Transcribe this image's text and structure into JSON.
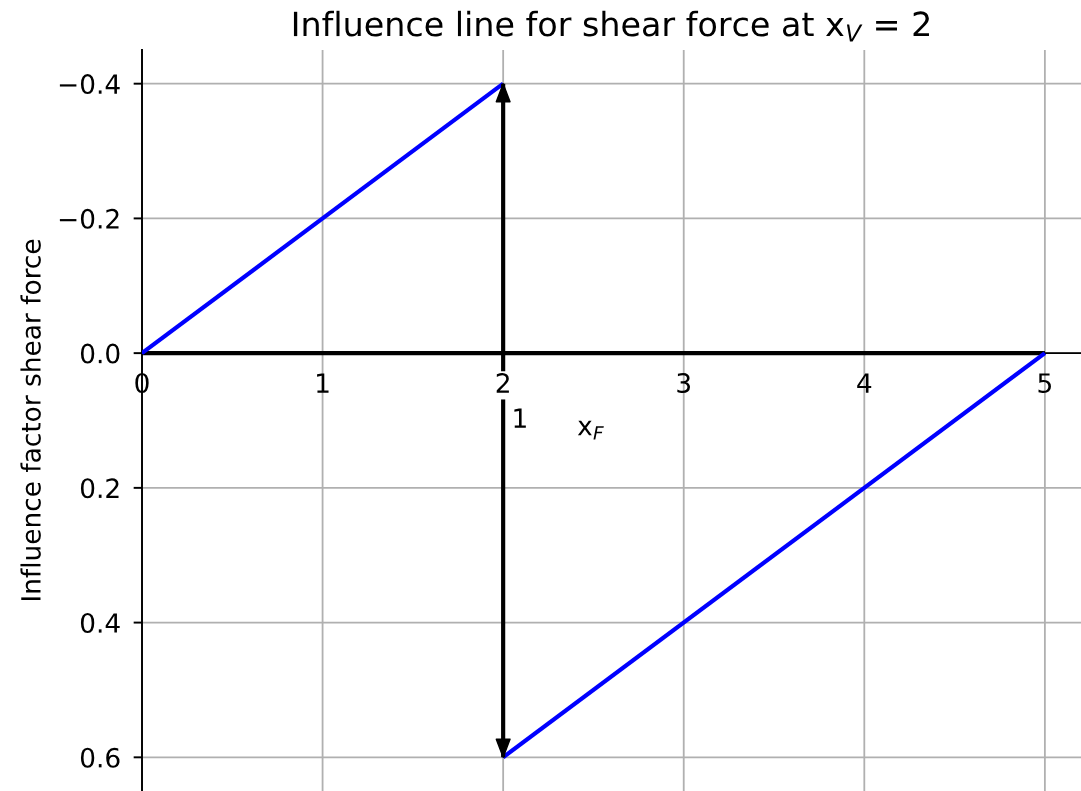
{
  "chart_data": {
    "type": "line",
    "title": "Influence line for shear force at x$_{V}$ = 2",
    "xlabel": "x$_{F}$",
    "ylabel": "Influence factor shear force",
    "series": [
      {
        "color": "#000000",
        "x": [
          0,
          5
        ],
        "values": [
          0,
          0
        ]
      },
      {
        "color": "#0000ff",
        "x": [
          0,
          2
        ],
        "values": [
          0,
          -0.4
        ]
      },
      {
        "color": "#0000ff",
        "x": [
          2,
          5
        ],
        "values": [
          0.6,
          0
        ]
      },
      {
        "color": "#000000",
        "x": [
          2,
          2
        ],
        "values": [
          -0.4,
          0.6
        ]
      }
    ],
    "xlim": [
      0,
      5.2
    ],
    "ylim": [
      0.65,
      -0.45
    ],
    "xticks": [
      0,
      1,
      2,
      3,
      4,
      5
    ],
    "yticks": [
      {
        "value": -0.4,
        "label": "−0.4"
      },
      {
        "value": -0.2,
        "label": "−0.2"
      },
      {
        "value": 0,
        "label": "0.0"
      },
      {
        "value": 0.2,
        "label": "0.2"
      },
      {
        "value": 0.4,
        "label": "0.4"
      },
      {
        "value": 0.6,
        "label": "0.6"
      }
    ],
    "grid": true,
    "annotations": [
      "1"
    ]
  }
}
